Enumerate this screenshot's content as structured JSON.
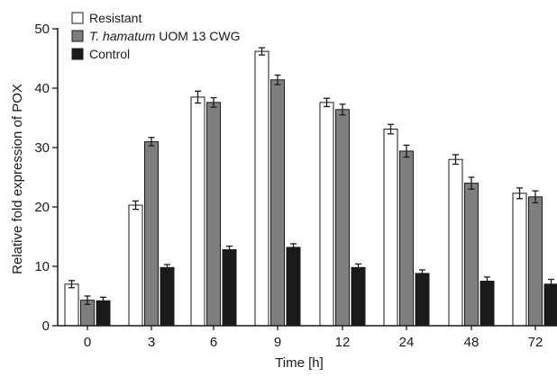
{
  "chart_data": {
    "type": "bar",
    "xlabel": "Time [h]",
    "ylabel": "Relative fold expression of POX",
    "ylim": [
      0,
      50
    ],
    "yticks": [
      0,
      10,
      20,
      30,
      40,
      50
    ],
    "categories": [
      "0",
      "3",
      "6",
      "9",
      "12",
      "24",
      "48",
      "72"
    ],
    "error_bars": true,
    "legend_position": "top-left",
    "series": [
      {
        "name": "Resistant",
        "color": "#ffffff",
        "values": [
          7.0,
          20.3,
          38.5,
          46.2,
          37.6,
          33.1,
          28.0,
          22.3
        ],
        "errors": [
          0.6,
          0.7,
          1.0,
          0.6,
          0.7,
          0.8,
          0.8,
          0.9
        ]
      },
      {
        "name_italic": "T. hamatum",
        "name_rest": " UOM 13 CWG",
        "color": "#7f7f7f",
        "values": [
          4.3,
          31.0,
          37.6,
          41.4,
          36.4,
          29.4,
          24.0,
          21.7
        ],
        "errors": [
          0.7,
          0.7,
          0.8,
          0.8,
          0.9,
          1.0,
          1.0,
          1.0
        ]
      },
      {
        "name": "Control",
        "color": "#1a1a1a",
        "values": [
          4.2,
          9.8,
          12.8,
          13.2,
          9.8,
          8.8,
          7.5,
          7.0
        ],
        "errors": [
          0.6,
          0.5,
          0.6,
          0.6,
          0.6,
          0.6,
          0.7,
          0.8
        ]
      }
    ]
  }
}
